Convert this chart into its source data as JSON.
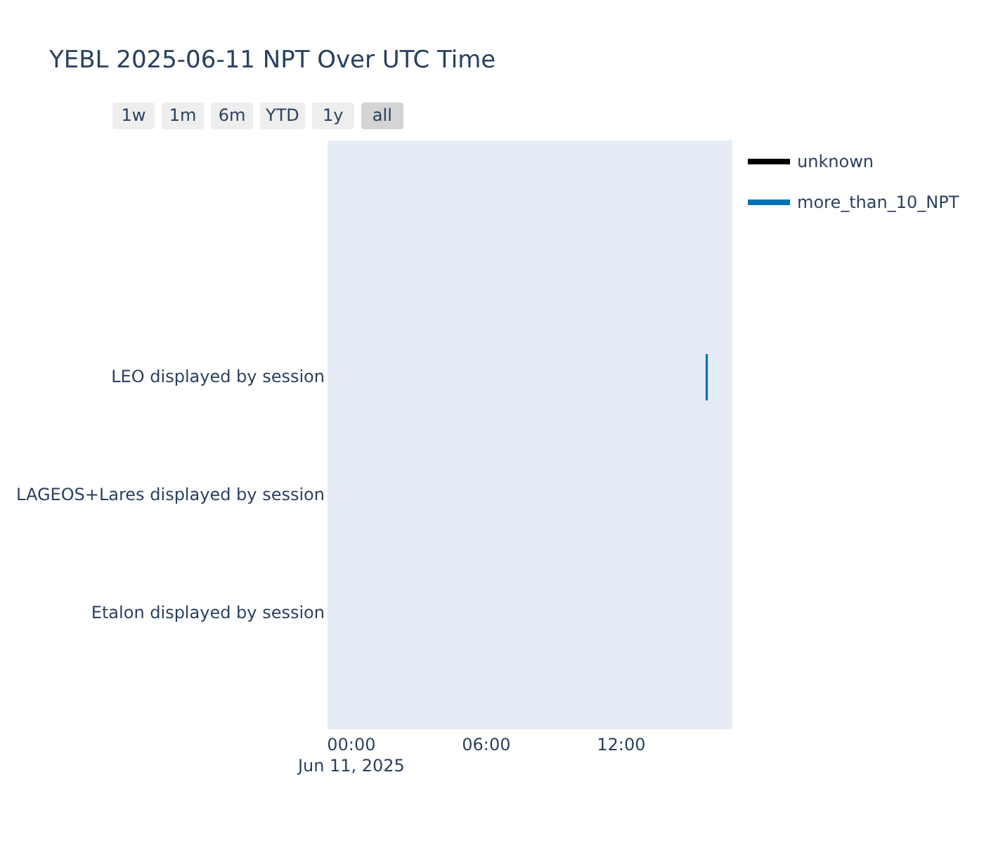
{
  "chart_data": {
    "type": "bar",
    "orientation": "horizontal",
    "title": "YEBL 2025-06-11 NPT Over UTC Time",
    "annotations": [
      "1w",
      "1m",
      "6m",
      "YTD",
      "1y",
      "all"
    ],
    "categories": [
      "LEO displayed by session",
      "LAGEOS+Lares displayed by session",
      "Etalon displayed by session"
    ],
    "series": [
      {
        "name": "unknown",
        "color": "#000000",
        "values": [
          null,
          null,
          null
        ],
        "base": [
          null,
          null,
          null
        ]
      },
      {
        "name": "more_than_10_NPT",
        "color": "#0072b2",
        "values": [
          0.1,
          null,
          null
        ],
        "base": [
          15.75,
          null,
          null
        ]
      }
    ],
    "xlim": [
      -1.06,
      16.94
    ],
    "xticks": [
      {
        "value": 0,
        "label": "00:00\nJun 11, 2025"
      },
      {
        "value": 6,
        "label": "06:00"
      },
      {
        "value": 12,
        "label": "12:00"
      }
    ],
    "legend": "top right"
  }
}
